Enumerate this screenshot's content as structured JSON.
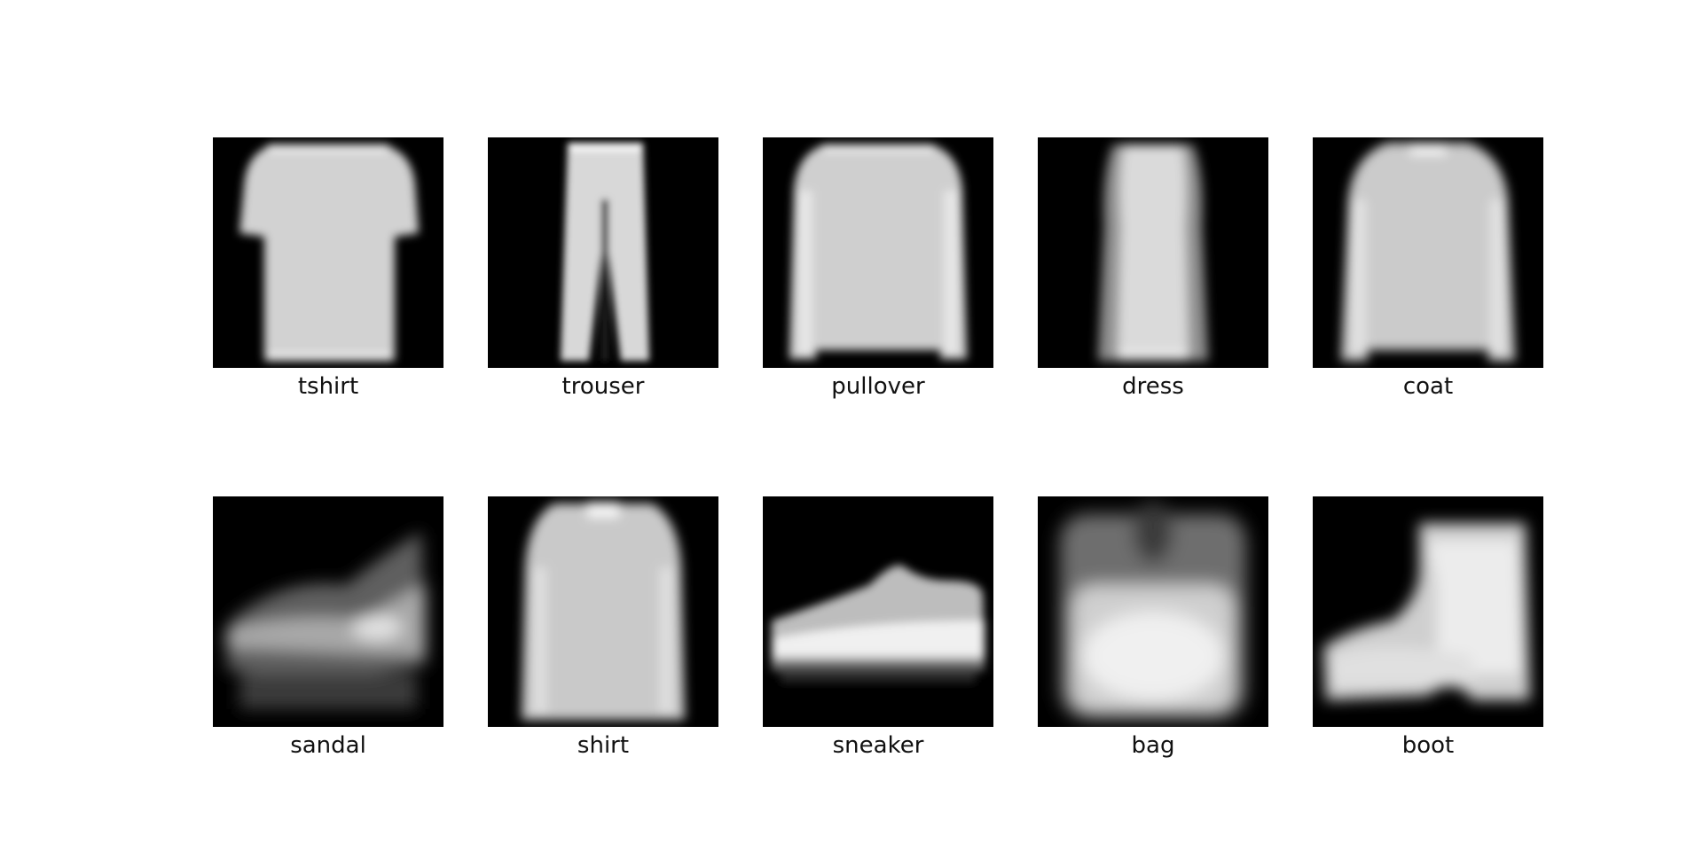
{
  "figure": {
    "background": "#ffffff",
    "panel_background": "#000000",
    "panels": [
      {
        "label": "tshirt",
        "shape": "tshirt"
      },
      {
        "label": "trouser",
        "shape": "trouser"
      },
      {
        "label": "pullover",
        "shape": "pullover"
      },
      {
        "label": "dress",
        "shape": "dress"
      },
      {
        "label": "coat",
        "shape": "coat"
      },
      {
        "label": "sandal",
        "shape": "sandal"
      },
      {
        "label": "shirt",
        "shape": "shirt"
      },
      {
        "label": "sneaker",
        "shape": "sneaker"
      },
      {
        "label": "bag",
        "shape": "bag"
      },
      {
        "label": "boot",
        "shape": "boot"
      }
    ]
  }
}
